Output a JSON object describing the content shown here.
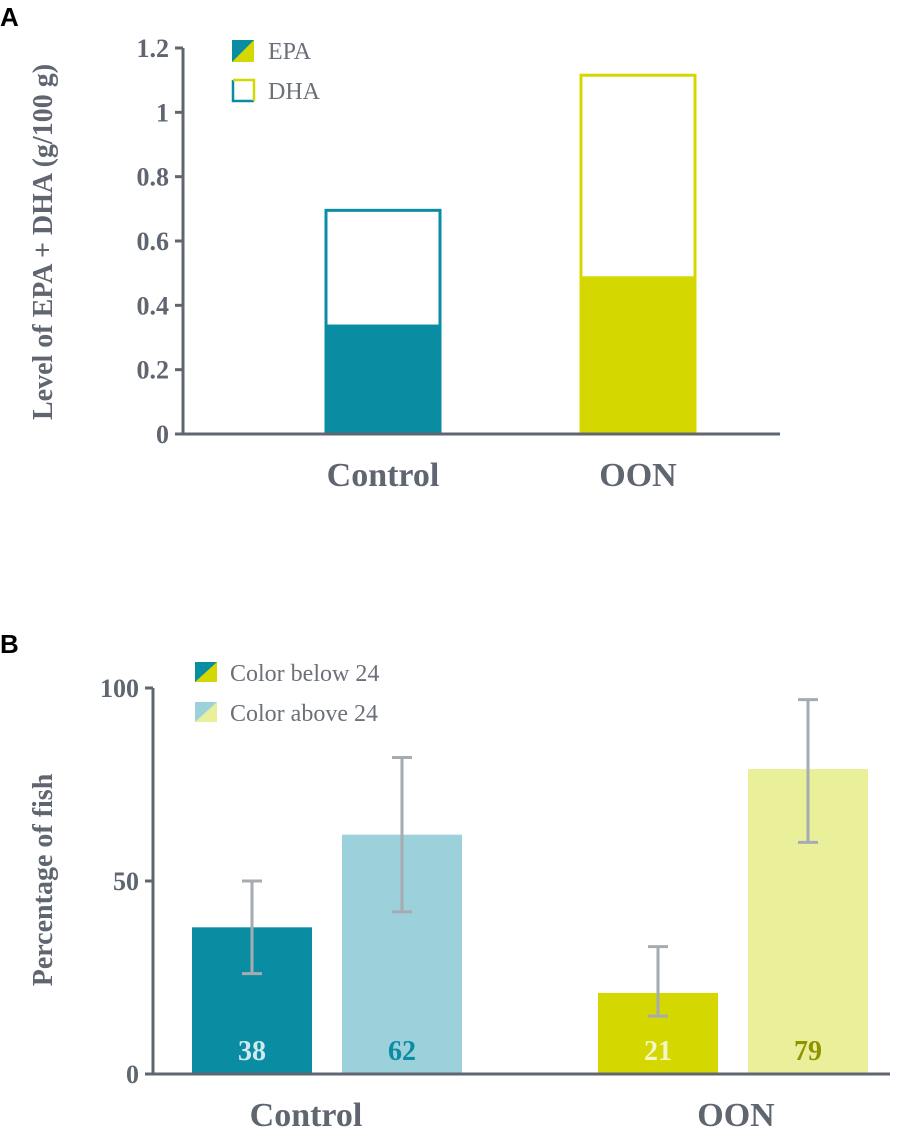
{
  "colors": {
    "teal": "#0a8ca3",
    "lime": "#d4d800",
    "light_teal": "#9cd1dc",
    "light_lime": "#eaef9a",
    "axis": "#5f6670",
    "error": "#a6abb1"
  },
  "chart_data": [
    {
      "panel": "A",
      "type": "bar",
      "stacked": true,
      "categories": [
        "Control",
        "OON"
      ],
      "series": [
        {
          "name": "EPA",
          "values": [
            0.34,
            0.49
          ]
        },
        {
          "name": "DHA",
          "values": [
            0.36,
            0.63
          ]
        }
      ],
      "ylabel": "Level of EPA + DHA (g/100 g)",
      "ylim": [
        0,
        1.2
      ],
      "yticks": [
        0,
        0.2,
        0.4,
        0.6,
        0.8,
        1,
        1.2
      ],
      "ytick_labels": [
        "0",
        "0.2",
        "0.4",
        "0.6",
        "0.8",
        "1",
        "1.2"
      ],
      "legend": [
        "EPA",
        "DHA"
      ],
      "legend_position": "top-left"
    },
    {
      "panel": "B",
      "type": "bar",
      "categories": [
        "Control",
        "OON"
      ],
      "series": [
        {
          "name": "Color below 24",
          "values": [
            38,
            21
          ],
          "error_low": [
            26,
            15
          ],
          "error_high": [
            50,
            33
          ]
        },
        {
          "name": "Color above 24",
          "values": [
            62,
            79
          ],
          "error_low": [
            42,
            60
          ],
          "error_high": [
            82,
            97
          ]
        }
      ],
      "data_labels": [
        [
          "38",
          "21"
        ],
        [
          "62",
          "79"
        ]
      ],
      "ylabel": "Percentage of fish",
      "ylim": [
        0,
        100
      ],
      "yticks": [
        0,
        50,
        100
      ],
      "ytick_labels": [
        "0",
        "50",
        "100"
      ],
      "legend": [
        "Color below 24",
        "Color above 24"
      ],
      "legend_position": "top-left"
    }
  ]
}
